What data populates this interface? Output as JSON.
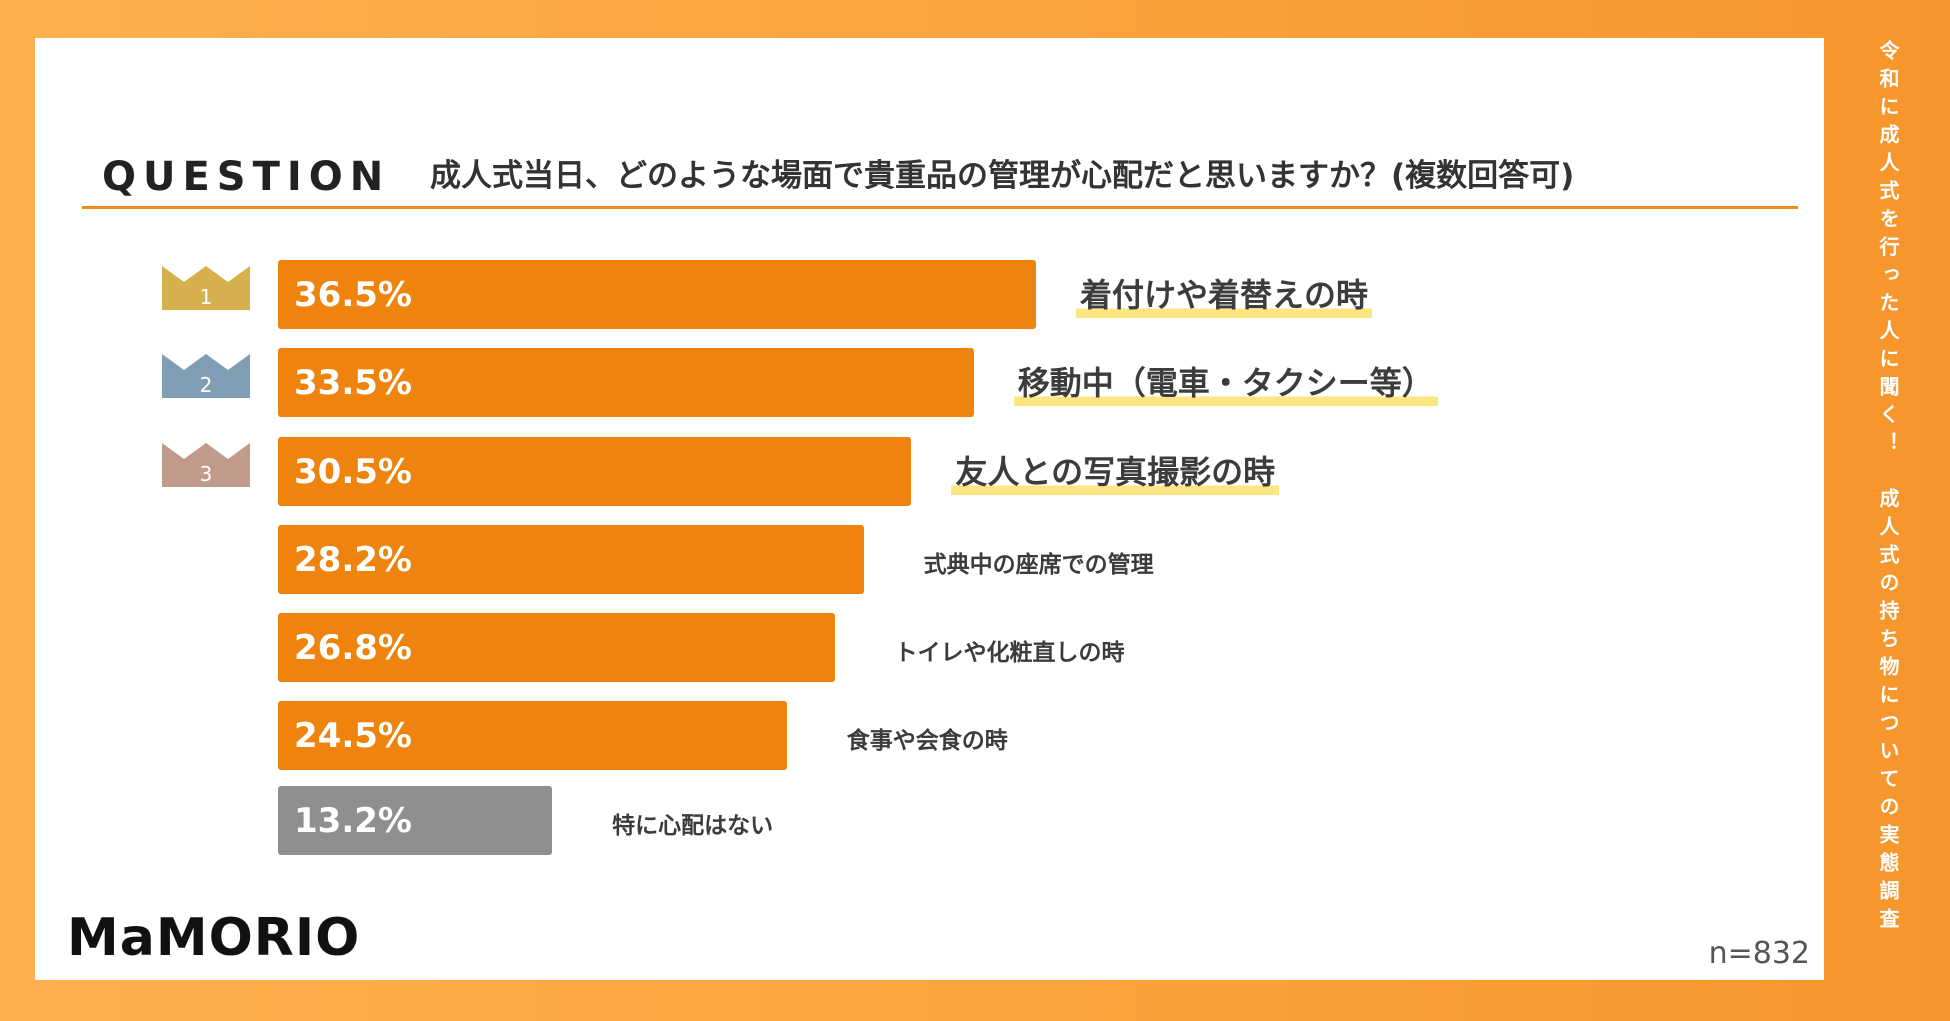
{
  "header": {
    "label": "QUESTION",
    "question": "成人式当日、どのような場面で貴重品の管理が心配だと思いますか？(複数回答可)"
  },
  "side_caption": "令和に成人式を行った人に聞く！　成人式の持ち物についての実態調査",
  "brand": {
    "logo": "MaMORIO"
  },
  "sample_size": "n=832",
  "colors": {
    "bar": "#ee840e",
    "bar_none": "#8f8f8f",
    "highlight": "#fbe682",
    "rank1": "#d6b04c",
    "rank2": "#7f9db3",
    "rank3": "#c09a8a",
    "background": "#fba33c"
  },
  "chart_data": {
    "type": "bar",
    "orientation": "horizontal",
    "categories": [
      "着付けや着替えの時",
      "移動中（電車・タクシー等）",
      "友人との写真撮影の時",
      "式典中の座席での管理",
      "トイレや化粧直しの時",
      "食事や会食の時",
      "特に心配はない"
    ],
    "values": [
      36.5,
      33.5,
      30.5,
      28.2,
      26.8,
      24.5,
      13.2
    ],
    "value_labels": [
      "36.5%",
      "33.5%",
      "30.5%",
      "28.2%",
      "26.8%",
      "24.5%",
      "13.2%"
    ],
    "ranks": [
      "1",
      "2",
      "3"
    ],
    "unit": "%",
    "xlim": [
      0,
      60
    ],
    "grid": false,
    "legend": "none"
  }
}
